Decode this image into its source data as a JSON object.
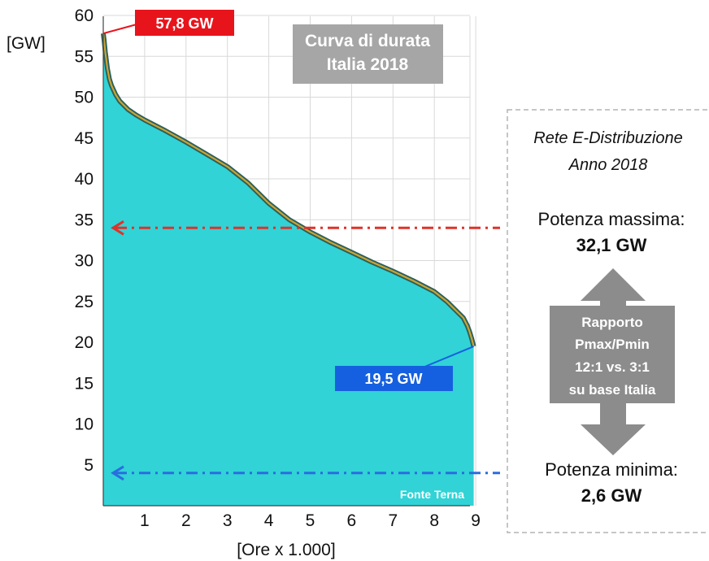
{
  "chart_data": {
    "type": "area",
    "title": "Curva di durata\nItalia 2018",
    "ylabel": "[GW]",
    "xlabel": "[Ore x 1.000]",
    "xlim": [
      0,
      9.5
    ],
    "ylim": [
      0,
      60
    ],
    "xticks": [
      1,
      2,
      3,
      4,
      5,
      6,
      7,
      8,
      9
    ],
    "yticks": [
      5,
      10,
      15,
      20,
      25,
      30,
      35,
      40,
      45,
      50,
      55,
      60
    ],
    "grid": true,
    "source": "Fonte Terna",
    "x": [
      0.0,
      0.02,
      0.05,
      0.1,
      0.15,
      0.2,
      0.3,
      0.4,
      0.6,
      0.8,
      1.0,
      1.5,
      2.0,
      2.5,
      3.0,
      3.5,
      4.0,
      4.5,
      5.0,
      5.5,
      6.0,
      6.5,
      7.0,
      7.5,
      8.0,
      8.3,
      8.5,
      8.7,
      8.8,
      8.85,
      8.9,
      8.95
    ],
    "values": [
      57.8,
      57.0,
      55.5,
      53.5,
      52.2,
      51.4,
      50.3,
      49.5,
      48.5,
      47.8,
      47.2,
      45.9,
      44.5,
      43.0,
      41.5,
      39.5,
      37.0,
      35.0,
      33.5,
      32.2,
      31.0,
      29.8,
      28.7,
      27.5,
      26.2,
      25.0,
      24.0,
      23.0,
      22.0,
      21.3,
      20.5,
      19.5
    ],
    "annotations": {
      "max": {
        "label": "57,8 GW",
        "x": 0.0,
        "y": 57.8,
        "color": "#e8141c"
      },
      "min": {
        "label": "19,5 GW",
        "x": 8.95,
        "y": 19.5,
        "color": "#1560e0"
      },
      "arrow_max": {
        "y": 34,
        "color": "#e0322a"
      },
      "arrow_min": {
        "y": 4,
        "color": "#2a6de0"
      }
    },
    "colors": {
      "area": "#31d3d6",
      "line_outer": "#2c5f5a",
      "line_inner": "#c9a436",
      "title_box": "#a6a6a6",
      "grid": "#d9d9d9"
    }
  },
  "side_panel": {
    "heading_line1": "Rete E-Distribuzione",
    "heading_line2": "Anno 2018",
    "pmax_label": "Potenza massima:",
    "pmax_value": "32,1 GW",
    "ratio_lines": [
      "Rapporto",
      "Pmax/Pmin",
      "12:1 vs. 3:1",
      "su base Italia"
    ],
    "pmin_label": "Potenza minima:",
    "pmin_value": "2,6 GW"
  }
}
